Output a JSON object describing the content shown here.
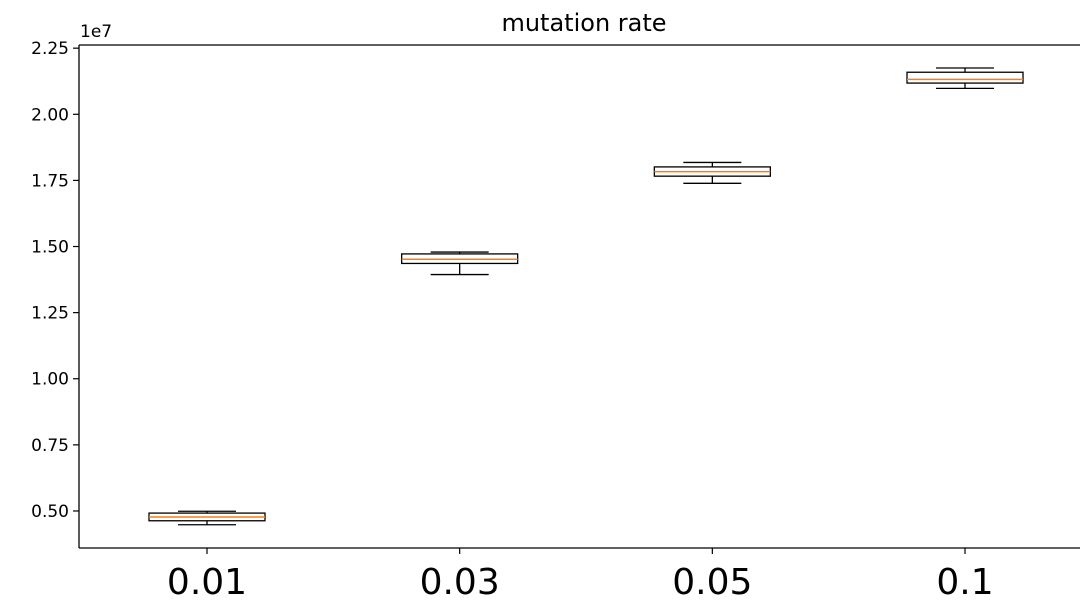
{
  "chart_data": {
    "type": "box",
    "title": "mutation rate",
    "xlabel": "",
    "ylabel": "",
    "y_offset_label": "1e7",
    "y_scale": 10000000,
    "ylim": [
      0.36,
      2.262
    ],
    "yticks": [
      0.5,
      0.75,
      1.0,
      1.25,
      1.5,
      1.75,
      2.0,
      2.25
    ],
    "ytick_labels": [
      "0.50",
      "0.75",
      "1.00",
      "1.25",
      "1.50",
      "1.75",
      "2.00",
      "2.25"
    ],
    "categories": [
      "0.01",
      "0.03",
      "0.05",
      "0.1"
    ],
    "boxes": [
      {
        "category": "0.01",
        "whisker_low": 0.448,
        "q1": 0.463,
        "median": 0.477,
        "q3": 0.492,
        "whisker_high": 0.499
      },
      {
        "category": "0.03",
        "whisker_low": 1.394,
        "q1": 1.436,
        "median": 1.452,
        "q3": 1.472,
        "whisker_high": 1.479
      },
      {
        "category": "0.05",
        "whisker_low": 1.739,
        "q1": 1.766,
        "median": 1.783,
        "q3": 1.801,
        "whisker_high": 1.818
      },
      {
        "category": "0.1",
        "whisker_low": 2.098,
        "q1": 2.118,
        "median": 2.132,
        "q3": 2.159,
        "whisker_high": 2.175
      }
    ],
    "grid": false,
    "legend": "none",
    "colors": {
      "median": "#ff7f0e",
      "box_edge": "#000000",
      "axis": "#000000"
    }
  }
}
